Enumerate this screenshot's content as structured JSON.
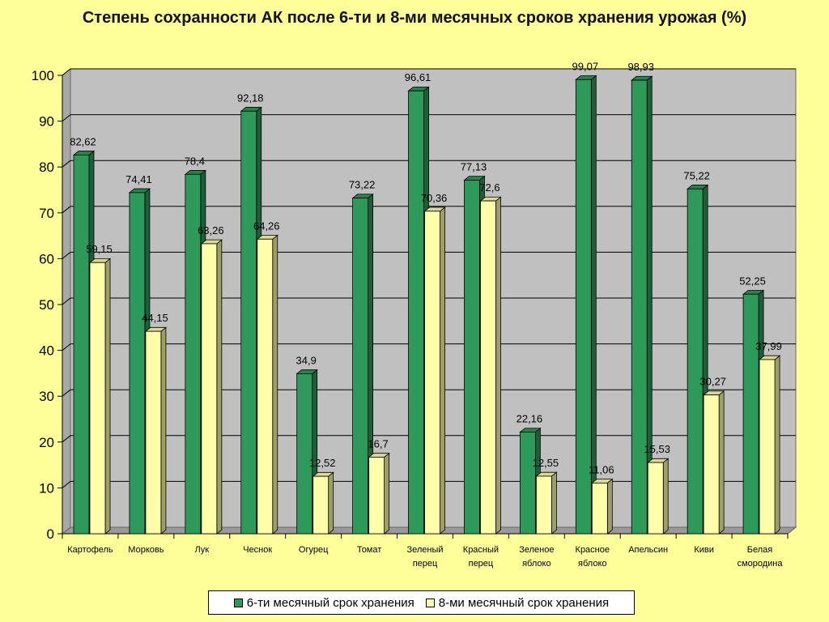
{
  "chart_data": {
    "type": "bar",
    "title": "Степень сохранности АК после 6-ти и 8-ми месячных сроков хранения урожая (%)",
    "categories": [
      [
        "Картофель"
      ],
      [
        "Морковь"
      ],
      [
        "Лук"
      ],
      [
        "Чеснок"
      ],
      [
        "Огурец"
      ],
      [
        "Томат"
      ],
      [
        "Зеленый",
        "перец"
      ],
      [
        "Красный",
        "перец"
      ],
      [
        "Зеленое",
        "яблоко"
      ],
      [
        "Красное",
        "яблоко"
      ],
      [
        "Апельсин"
      ],
      [
        "Киви"
      ],
      [
        "Белая",
        "смородина"
      ]
    ],
    "series": [
      {
        "name": "6-ти месячный срок хранения",
        "color": "#2e9a5a",
        "values": [
          82.62,
          74.41,
          78.4,
          92.18,
          34.9,
          73.22,
          96.61,
          77.13,
          22.16,
          99.07,
          98.93,
          75.22,
          52.25
        ],
        "labels": [
          "82,62",
          "74,41",
          "78,4",
          "92,18",
          "34,9",
          "73,22",
          "96,61",
          "77,13",
          "22,16",
          "99,07",
          "98,93",
          "75,22",
          "52,25"
        ]
      },
      {
        "name": "8-ми месячный срок хранения",
        "color": "#ffffaa",
        "values": [
          59.15,
          44.15,
          63.26,
          64.26,
          12.52,
          16.7,
          70.36,
          72.6,
          12.55,
          11.06,
          15.53,
          30.27,
          37.99
        ],
        "labels": [
          "59,15",
          "44,15",
          "63,26",
          "64,26",
          "12,52",
          "16,7",
          "70,36",
          "72,6",
          "12,55",
          "11,06",
          "15,53",
          "30,27",
          "37,99"
        ]
      }
    ],
    "ylim": [
      0,
      100
    ],
    "yticks": [
      "0",
      "10",
      "20",
      "30",
      "40",
      "50",
      "60",
      "70",
      "80",
      "90",
      "100"
    ],
    "grid": true,
    "legend_position": "bottom"
  }
}
